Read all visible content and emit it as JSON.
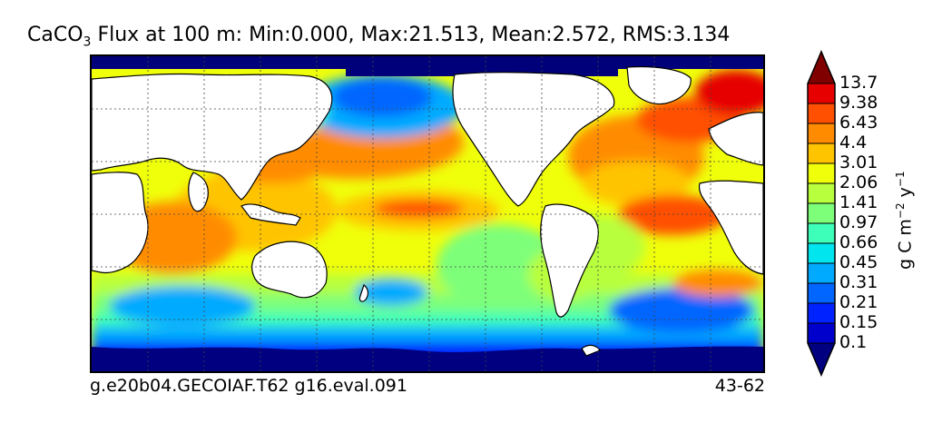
{
  "title": {
    "prefix": "CaCO",
    "subscript": "3",
    "text": " Flux at 100 m: Min:0.000, Max:21.513, Mean:2.572, RMS:3.134"
  },
  "footer": {
    "left": "g.e20b04.GECOIAF.T62 g16.eval.091",
    "right": "43-62"
  },
  "colorbar": {
    "units_prefix": "g C m",
    "units_exp1": "−2",
    "units_mid": " y",
    "units_exp2": "−1",
    "labels": [
      "13.7",
      "9.38",
      "6.43",
      "4.4",
      "3.01",
      "2.06",
      "1.41",
      "0.97",
      "0.66",
      "0.45",
      "0.31",
      "0.21",
      "0.15",
      "0.1"
    ],
    "colors": [
      "#000080",
      "#0000cd",
      "#0022ff",
      "#0066ff",
      "#00aaff",
      "#00e5ee",
      "#3dffb9",
      "#7dff7a",
      "#b8ff3d",
      "#f0ff0a",
      "#ffc400",
      "#ff8c00",
      "#ff4f00",
      "#e60000",
      "#800000"
    ]
  },
  "colors": {
    "land": "#ffffff",
    "ice": "#00007a",
    "coast": "#000000"
  }
}
